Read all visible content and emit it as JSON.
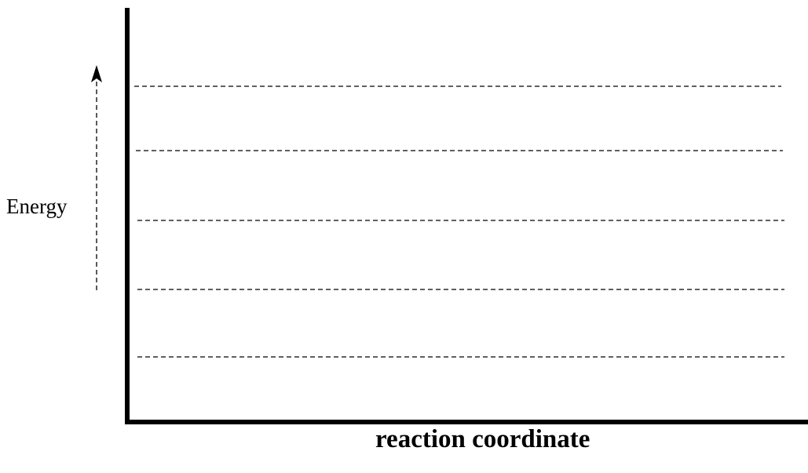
{
  "diagram": {
    "y_label": "Energy",
    "x_label": "reaction coordinate",
    "energy_levels": 5,
    "line_color": "#000000",
    "energy_arrow": "dashed-up-arrow-icon"
  }
}
